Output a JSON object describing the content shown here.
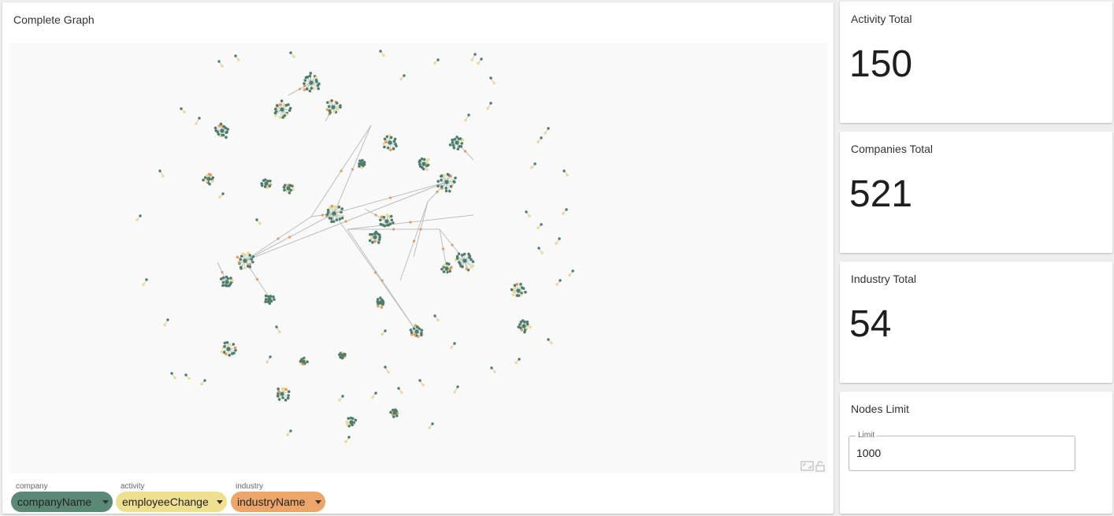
{
  "graph": {
    "title": "Complete Graph",
    "colors": {
      "company": "#4f7d6b",
      "activity": "#ecd98a",
      "industry": "#e59a5e",
      "edge": "#bdbdbd"
    },
    "hubs": [
      [
        392,
        102,
        12
      ],
      [
        355,
        136,
        11
      ],
      [
        279,
        163,
        10
      ],
      [
        492,
        178,
        9
      ],
      [
        577,
        178,
        9
      ],
      [
        564,
        228,
        12
      ],
      [
        535,
        205,
        8
      ],
      [
        421,
        268,
        12
      ],
      [
        488,
        278,
        9
      ],
      [
        473,
        298,
        8
      ],
      [
        308,
        328,
        11
      ],
      [
        285,
        355,
        8
      ],
      [
        587,
        328,
        12
      ],
      [
        564,
        338,
        7
      ],
      [
        655,
        366,
        9
      ],
      [
        662,
        411,
        8
      ],
      [
        526,
        418,
        8
      ],
      [
        287,
        440,
        9
      ],
      [
        355,
        497,
        9
      ],
      [
        443,
        533,
        6
      ],
      [
        262,
        224,
        7
      ],
      [
        363,
        236,
        6
      ],
      [
        339,
        377,
        6
      ],
      [
        498,
        521,
        5
      ],
      [
        420,
        133,
        9
      ],
      [
        456,
        205,
        5
      ],
      [
        335,
        230,
        6
      ],
      [
        432,
        448,
        5
      ],
      [
        480,
        381,
        6
      ],
      [
        382,
        456,
        5
      ]
    ],
    "pairs": [
      [
        275,
        75
      ],
      [
        296,
        68
      ],
      [
        366,
        64
      ],
      [
        480,
        62
      ],
      [
        510,
        93
      ],
      [
        553,
        73
      ],
      [
        608,
        72
      ],
      [
        620,
        96
      ],
      [
        227,
        135
      ],
      [
        250,
        147
      ],
      [
        620,
        128
      ],
      [
        592,
        143
      ],
      [
        684,
        172
      ],
      [
        693,
        160
      ],
      [
        200,
        214
      ],
      [
        280,
        243
      ],
      [
        175,
        271
      ],
      [
        323,
        276
      ],
      [
        676,
        205
      ],
      [
        713,
        214
      ],
      [
        665,
        266
      ],
      [
        716,
        263
      ],
      [
        684,
        282
      ],
      [
        707,
        300
      ],
      [
        681,
        312
      ],
      [
        183,
        352
      ],
      [
        708,
        353
      ],
      [
        724,
        341
      ],
      [
        210,
        403
      ],
      [
        348,
        412
      ],
      [
        486,
        417
      ],
      [
        549,
        398
      ],
      [
        574,
        433
      ],
      [
        693,
        428
      ],
      [
        656,
        453
      ],
      [
        621,
        464
      ],
      [
        215,
        471
      ],
      [
        233,
        473
      ],
      [
        257,
        480
      ],
      [
        340,
        450
      ],
      [
        486,
        463
      ],
      [
        578,
        488
      ],
      [
        503,
        490
      ],
      [
        474,
        496
      ],
      [
        432,
        500
      ],
      [
        530,
        480
      ],
      [
        366,
        544
      ],
      [
        546,
        535
      ],
      [
        440,
        552
      ],
      [
        600,
        66
      ]
    ],
    "links": [
      [
        392,
        102,
        363,
        118
      ],
      [
        420,
        133,
        410,
        151
      ],
      [
        308,
        328,
        392,
        272
      ],
      [
        308,
        328,
        421,
        268
      ],
      [
        392,
        272,
        468,
        156
      ],
      [
        421,
        268,
        468,
        156
      ],
      [
        421,
        268,
        564,
        228
      ],
      [
        308,
        328,
        564,
        228
      ],
      [
        421,
        268,
        526,
        418
      ],
      [
        438,
        288,
        526,
        418
      ],
      [
        438,
        288,
        598,
        270
      ],
      [
        438,
        288,
        555,
        288
      ],
      [
        555,
        288,
        587,
        328
      ],
      [
        540,
        253,
        522,
        323
      ],
      [
        540,
        253,
        505,
        353
      ],
      [
        555,
        288,
        564,
        338
      ],
      [
        308,
        328,
        339,
        375
      ],
      [
        285,
        355,
        273,
        330
      ],
      [
        577,
        178,
        598,
        200
      ],
      [
        488,
        278,
        460,
        262
      ],
      [
        564,
        228,
        540,
        253
      ],
      [
        392,
        272,
        421,
        268
      ]
    ]
  },
  "chips": [
    {
      "label": "company",
      "value": "companyName",
      "color": "#5a8a77"
    },
    {
      "label": "activity",
      "value": "employeeChange",
      "color": "#efe090"
    },
    {
      "label": "industry",
      "value": "industryName",
      "color": "#eda66a"
    }
  ],
  "stats": {
    "activity": {
      "label": "Activity Total",
      "value": "150"
    },
    "companies": {
      "label": "Companies Total",
      "value": "521"
    },
    "industry": {
      "label": "Industry Total",
      "value": "54"
    }
  },
  "limits": {
    "title": "Nodes Limit",
    "field_label": "Limit",
    "value": "1000"
  }
}
